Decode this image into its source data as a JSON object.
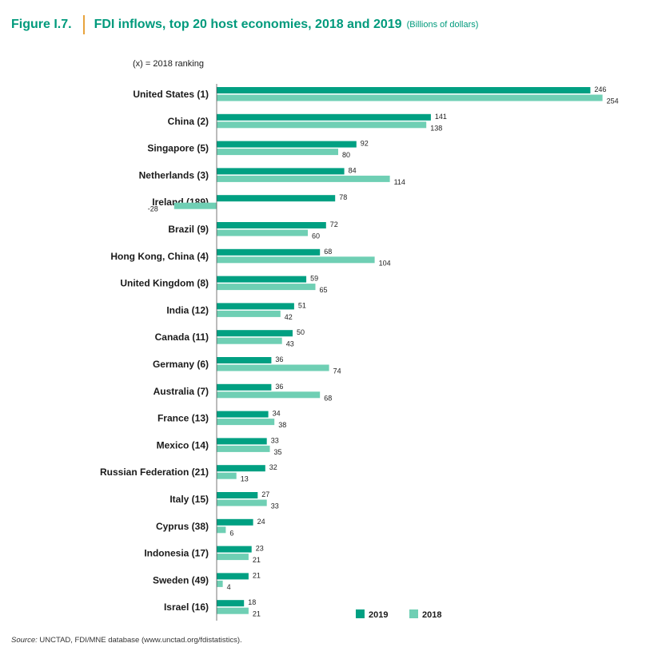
{
  "figure_label": "Figure I.7.",
  "title": "FDI inflows, top 20 host economies, 2018 and 2019",
  "unit": "(Billions of dollars)",
  "ranking_note": "(x) = 2018  ranking",
  "source": {
    "label": "Source:",
    "text": "UNCTAD, FDI/MNE database (www.unctad.org/fdistatistics)."
  },
  "colors": {
    "2019": "#00a082",
    "2018": "#6fcfb4"
  },
  "chart_data": {
    "type": "bar",
    "orientation": "horizontal",
    "categories": [
      "United States (1)",
      "China (2)",
      "Singapore (5)",
      "Netherlands (3)",
      "Ireland (189)",
      "Brazil (9)",
      "Hong Kong, China (4)",
      "United Kingdom (8)",
      "India (12)",
      "Canada (11)",
      "Germany (6)",
      "Australia (7)",
      "France (13)",
      "Mexico (14)",
      "Russian Federation (21)",
      "Italy (15)",
      "Cyprus (38)",
      "Indonesia (17)",
      "Sweden (49)",
      "Israel (16)"
    ],
    "series": [
      {
        "name": "2019",
        "values": [
          246,
          141,
          92,
          84,
          78,
          72,
          68,
          59,
          51,
          50,
          36,
          36,
          34,
          33,
          32,
          27,
          24,
          23,
          21,
          18
        ]
      },
      {
        "name": "2018",
        "values": [
          254,
          138,
          80,
          114,
          -28,
          60,
          104,
          65,
          42,
          43,
          74,
          68,
          38,
          35,
          13,
          33,
          6,
          21,
          4,
          21
        ]
      }
    ],
    "legend": "bottom-right",
    "grid": false
  }
}
